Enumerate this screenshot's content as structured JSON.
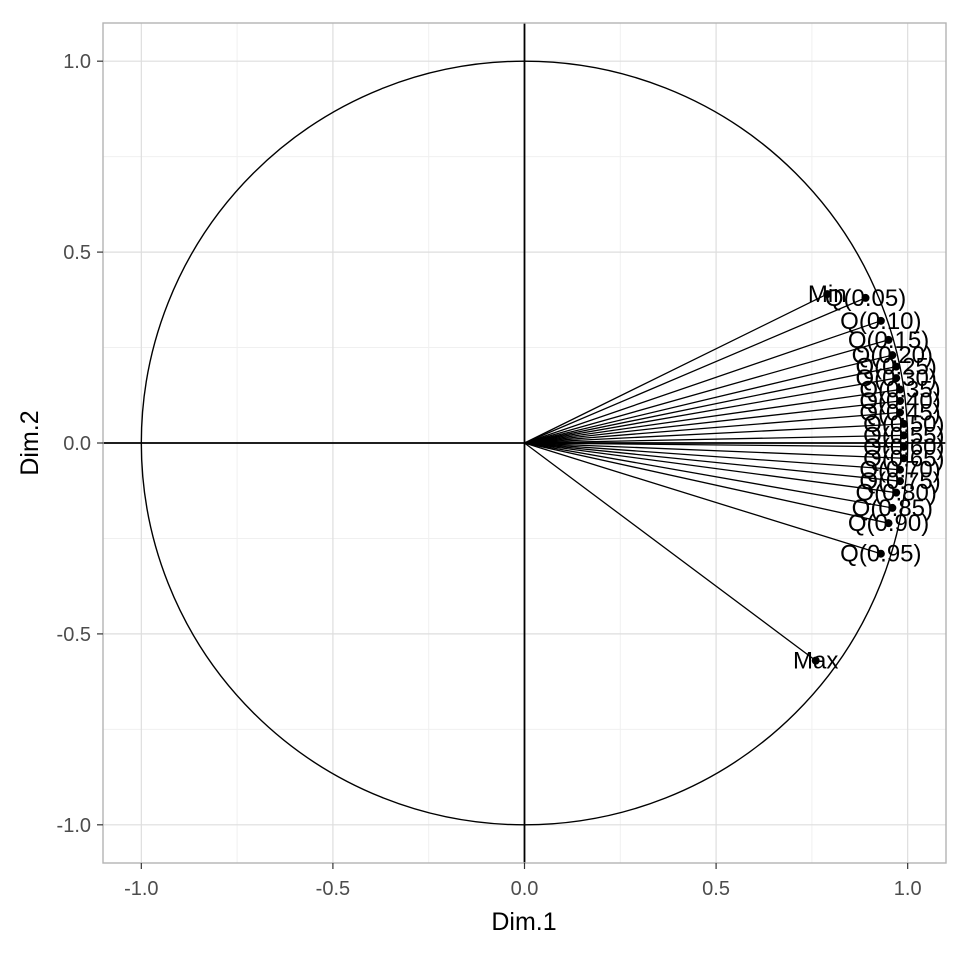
{
  "chart_data": {
    "type": "scatter",
    "title": "",
    "xlabel": "Dim.1",
    "ylabel": "Dim.2",
    "xlim": [
      -1.1,
      1.1
    ],
    "ylim": [
      -1.1,
      1.1
    ],
    "x_ticks": [
      "-1.0",
      "-0.5",
      "0.0",
      "0.5",
      "1.0"
    ],
    "y_ticks": [
      "-1.0",
      "-0.5",
      "0.0",
      "0.5",
      "1.0"
    ],
    "grid": true,
    "unit_circle": true,
    "arrows_from_origin": true,
    "points": [
      {
        "label": "Min",
        "x": 0.79,
        "y": 0.39
      },
      {
        "label": "Q(0.05)",
        "x": 0.89,
        "y": 0.38
      },
      {
        "label": "Q(0.10)",
        "x": 0.93,
        "y": 0.32
      },
      {
        "label": "Q(0.15)",
        "x": 0.95,
        "y": 0.27
      },
      {
        "label": "Q(0.20)",
        "x": 0.96,
        "y": 0.23
      },
      {
        "label": "Q(0.25)",
        "x": 0.97,
        "y": 0.2
      },
      {
        "label": "Q(0.30)",
        "x": 0.97,
        "y": 0.17
      },
      {
        "label": "Q(0.35)",
        "x": 0.98,
        "y": 0.14
      },
      {
        "label": "Q(0.40)",
        "x": 0.98,
        "y": 0.11
      },
      {
        "label": "Q(0.45)",
        "x": 0.98,
        "y": 0.08
      },
      {
        "label": "Q(0.50)",
        "x": 0.99,
        "y": 0.05
      },
      {
        "label": "Q(0.55)",
        "x": 0.99,
        "y": 0.02
      },
      {
        "label": "Q(0.60)",
        "x": 0.99,
        "y": -0.01
      },
      {
        "label": "Q(0.65)",
        "x": 0.99,
        "y": -0.04
      },
      {
        "label": "Q(0.70)",
        "x": 0.98,
        "y": -0.07
      },
      {
        "label": "Q(0.75)",
        "x": 0.98,
        "y": -0.1
      },
      {
        "label": "Q(0.80)",
        "x": 0.97,
        "y": -0.13
      },
      {
        "label": "Q(0.85)",
        "x": 0.96,
        "y": -0.17
      },
      {
        "label": "Q(0.90)",
        "x": 0.95,
        "y": -0.21
      },
      {
        "label": "Q(0.95)",
        "x": 0.93,
        "y": -0.29
      },
      {
        "label": "Max",
        "x": 0.76,
        "y": -0.57
      }
    ]
  }
}
